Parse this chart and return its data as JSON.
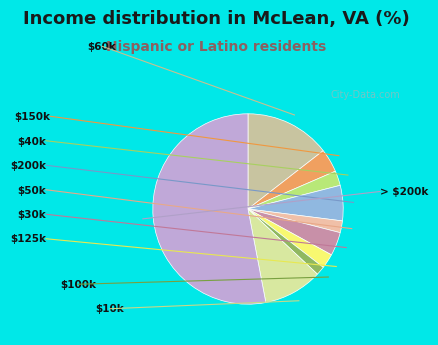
{
  "title": "Income distribution in McLean, VA (%)",
  "subtitle": "Hispanic or Latino residents",
  "bg_cyan": "#00e8e8",
  "chart_bg_color": "#d8f0e0",
  "watermark": "City-Data.com",
  "title_color": "#1a1a1a",
  "subtitle_color": "#8b6060",
  "labels": [
    "$60k",
    "$150k",
    "$40k",
    "$200k",
    "$50k",
    "$30k",
    "$125k",
    "$100k",
    "$10k",
    "> $200k"
  ],
  "sizes": [
    14.5,
    4.0,
    2.5,
    6.0,
    2.0,
    4.0,
    2.5,
    1.5,
    10.0,
    53.0
  ],
  "colors": [
    "#c8c4a0",
    "#f0a060",
    "#b8e878",
    "#90b8e0",
    "#f0c0a8",
    "#c890a8",
    "#f8f870",
    "#90b860",
    "#d8e8a0",
    "#c0a8d8"
  ],
  "line_colors": [
    "#c8c090",
    "#f09840",
    "#a8d060",
    "#7898c8",
    "#e8a888",
    "#b87090",
    "#e8e850",
    "#78a040",
    "#c8d888",
    "#b098c8"
  ],
  "startangle": 90,
  "label_fontsize": 7.5,
  "title_fontsize": 13,
  "subtitle_fontsize": 10
}
